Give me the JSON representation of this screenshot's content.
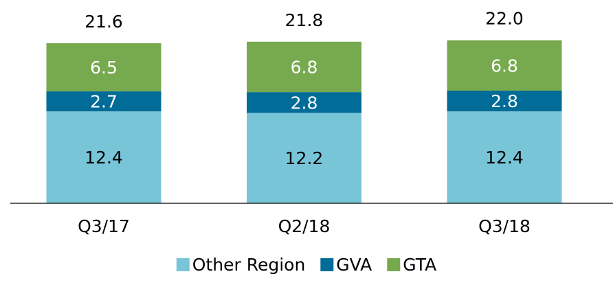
{
  "chart_data": {
    "type": "stacked_bar",
    "categories": [
      "Q3/17",
      "Q2/18",
      "Q3/18"
    ],
    "series": [
      {
        "name": "Other Region",
        "color": "#79c5d8",
        "label_color": "#000000",
        "values": [
          12.4,
          12.2,
          12.4
        ]
      },
      {
        "name": "GVA",
        "color": "#006c97",
        "label_color": "#ffffff",
        "values": [
          2.7,
          2.8,
          2.8
        ]
      },
      {
        "name": "GTA",
        "color": "#77a94f",
        "label_color": "#ffffff",
        "values": [
          6.5,
          6.8,
          6.8
        ]
      }
    ],
    "totals": [
      21.6,
      21.8,
      22.0
    ],
    "total_labels": [
      "21.6",
      "21.8",
      "22.0"
    ]
  }
}
